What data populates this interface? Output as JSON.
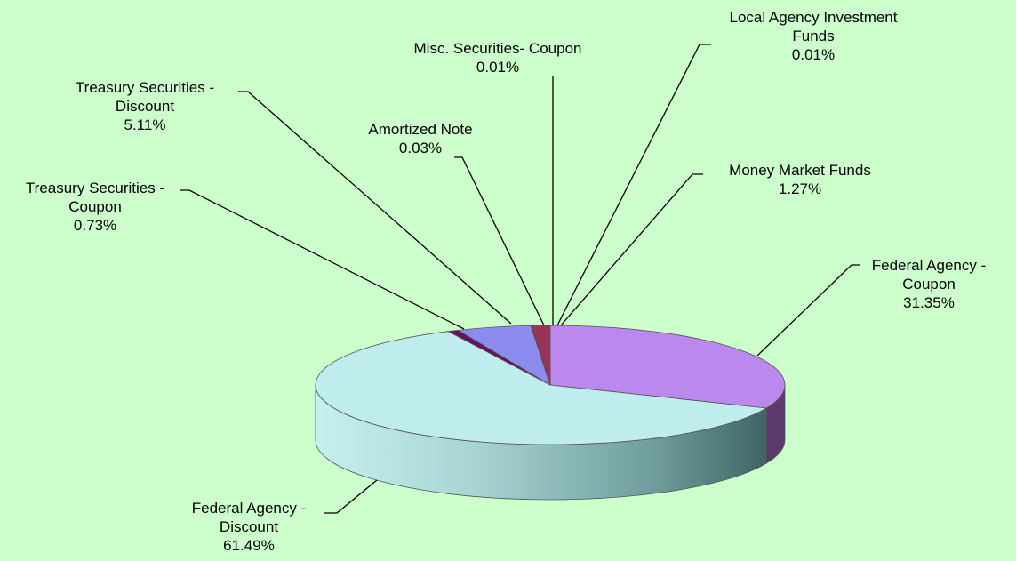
{
  "chart_data": {
    "type": "pie",
    "title": "",
    "three_d": true,
    "slices": [
      {
        "name": "Federal Agency - Coupon",
        "label_lines": [
          "Federal Agency -",
          "Coupon"
        ],
        "value": 31.35,
        "value_label": "31.35%",
        "color": "#bb88ee",
        "side_color": "#5c3a6e"
      },
      {
        "name": "Federal Agency - Discount",
        "label_lines": [
          "Federal Agency -",
          "Discount"
        ],
        "value": 61.49,
        "value_label": "61.49%",
        "color": "#bfecec",
        "side_color": "#86b8b8"
      },
      {
        "name": "Treasury Securities - Coupon",
        "label_lines": [
          "Treasury Securities -",
          "Coupon"
        ],
        "value": 0.73,
        "value_label": "0.73%",
        "color": "#6a1060",
        "side_color": "#3a0834"
      },
      {
        "name": "Treasury Securities - Discount",
        "label_lines": [
          "Treasury Securities -",
          "Discount"
        ],
        "value": 5.11,
        "value_label": "5.11%",
        "color": "#8c8cee",
        "side_color": "#4e4e9a"
      },
      {
        "name": "Amortized Note",
        "label_lines": [
          "Amortized Note"
        ],
        "value": 0.03,
        "value_label": "0.03%",
        "color": "#ffffaa",
        "side_color": "#999960"
      },
      {
        "name": "Misc. Securities- Coupon",
        "label_lines": [
          "Misc. Securities- Coupon"
        ],
        "value": 0.01,
        "value_label": "0.01%",
        "color": "#cc3333",
        "side_color": "#7a1f1f"
      },
      {
        "name": "Local Agency Investment Funds",
        "label_lines": [
          "Local Agency Investment",
          "Funds"
        ],
        "value": 0.01,
        "value_label": "0.01%",
        "color": "#66ccff",
        "side_color": "#3a7a99"
      },
      {
        "name": "Money Market Funds",
        "label_lines": [
          "Money Market Funds"
        ],
        "value": 1.27,
        "value_label": "1.27%",
        "color": "#993355",
        "side_color": "#551d2f"
      }
    ]
  }
}
